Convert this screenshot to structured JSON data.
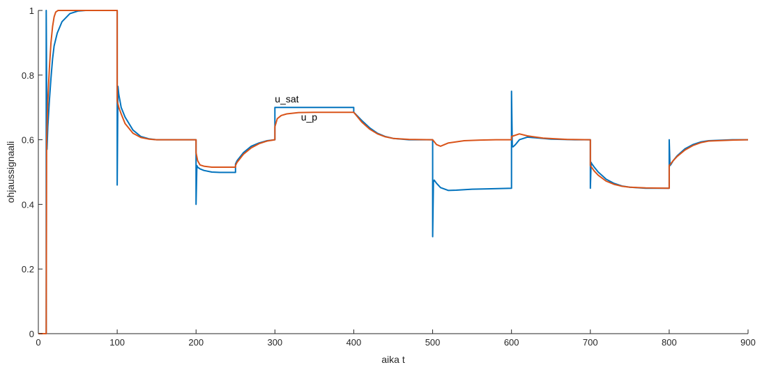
{
  "chart_data": {
    "type": "line",
    "xlabel": "aika t",
    "ylabel": "ohjaussignaali",
    "xlim": [
      0,
      900
    ],
    "ylim": [
      0,
      1
    ],
    "xticks": [
      "0",
      "100",
      "200",
      "300",
      "400",
      "500",
      "600",
      "700",
      "800",
      "900"
    ],
    "yticks": [
      "0",
      "0.2",
      "0.4",
      "0.6",
      "0.8",
      "1"
    ],
    "grid": false,
    "legend": "none",
    "annotations": [
      {
        "text": "u_sat",
        "x": 300,
        "y": 0.715
      },
      {
        "text": "u_p",
        "x": 333,
        "y": 0.66
      }
    ],
    "series": [
      {
        "name": "u_sat",
        "color": "#0072BD",
        "x": [
          0,
          10,
          10,
          11,
          12,
          14,
          16,
          18,
          20,
          24,
          30,
          40,
          50,
          60,
          80,
          100,
          100,
          101,
          102,
          105,
          110,
          120,
          130,
          140,
          150,
          170,
          200,
          200,
          201,
          202,
          205,
          210,
          220,
          230,
          240,
          250,
          250,
          252,
          260,
          270,
          280,
          290,
          300,
          300,
          400,
          400,
          402,
          410,
          420,
          430,
          440,
          450,
          470,
          500,
          500,
          501,
          502,
          505,
          510,
          520,
          530,
          550,
          570,
          600,
          600,
          601,
          602,
          605,
          610,
          620,
          630,
          650,
          680,
          700,
          700,
          701,
          702,
          705,
          710,
          720,
          730,
          740,
          750,
          770,
          800,
          800,
          801,
          802,
          805,
          810,
          820,
          830,
          840,
          850,
          880,
          900
        ],
        "y": [
          0,
          0,
          1,
          0.57,
          0.64,
          0.72,
          0.79,
          0.85,
          0.89,
          0.93,
          0.965,
          0.99,
          0.998,
          1,
          1,
          1,
          0.46,
          0.765,
          0.74,
          0.7,
          0.67,
          0.63,
          0.61,
          0.603,
          0.6,
          0.6,
          0.6,
          0.4,
          0.52,
          0.515,
          0.51,
          0.505,
          0.5,
          0.499,
          0.499,
          0.499,
          0.525,
          0.535,
          0.56,
          0.58,
          0.59,
          0.597,
          0.6,
          0.7,
          0.7,
          0.685,
          0.68,
          0.66,
          0.637,
          0.62,
          0.61,
          0.604,
          0.6,
          0.6,
          0.3,
          0.47,
          0.475,
          0.465,
          0.452,
          0.443,
          0.444,
          0.447,
          0.448,
          0.45,
          0.75,
          0.58,
          0.578,
          0.585,
          0.6,
          0.608,
          0.606,
          0.602,
          0.6,
          0.6,
          0.45,
          0.53,
          0.525,
          0.515,
          0.5,
          0.478,
          0.465,
          0.457,
          0.453,
          0.45,
          0.45,
          0.6,
          0.52,
          0.523,
          0.535,
          0.55,
          0.572,
          0.585,
          0.593,
          0.597,
          0.6,
          0.6
        ]
      },
      {
        "name": "u_p",
        "color": "#D95319",
        "x": [
          0,
          10,
          10.5,
          12,
          14,
          16,
          18,
          20,
          22,
          25,
          30,
          50,
          100,
          100,
          102,
          105,
          110,
          120,
          130,
          140,
          150,
          170,
          200,
          200,
          202,
          205,
          210,
          220,
          250,
          250,
          252,
          260,
          270,
          280,
          290,
          300,
          300,
          303,
          308,
          315,
          330,
          350,
          400,
          400,
          405,
          410,
          420,
          430,
          440,
          450,
          470,
          500,
          500,
          505,
          510,
          520,
          540,
          560,
          580,
          600,
          600,
          610,
          620,
          640,
          670,
          700,
          700,
          705,
          710,
          720,
          730,
          740,
          750,
          770,
          800,
          800,
          805,
          810,
          820,
          830,
          840,
          850,
          880,
          900
        ],
        "y": [
          0,
          0,
          0.6,
          0.72,
          0.82,
          0.9,
          0.95,
          0.98,
          0.995,
          1,
          1,
          1,
          1,
          0.72,
          0.7,
          0.68,
          0.65,
          0.62,
          0.607,
          0.602,
          0.6,
          0.6,
          0.6,
          0.56,
          0.535,
          0.522,
          0.518,
          0.515,
          0.515,
          0.52,
          0.53,
          0.555,
          0.575,
          0.588,
          0.596,
          0.6,
          0.64,
          0.665,
          0.675,
          0.68,
          0.684,
          0.685,
          0.685,
          0.685,
          0.67,
          0.655,
          0.633,
          0.618,
          0.609,
          0.604,
          0.601,
          0.6,
          0.6,
          0.585,
          0.58,
          0.59,
          0.597,
          0.599,
          0.6,
          0.6,
          0.61,
          0.618,
          0.612,
          0.605,
          0.601,
          0.6,
          0.52,
          0.503,
          0.49,
          0.472,
          0.462,
          0.456,
          0.453,
          0.451,
          0.45,
          0.52,
          0.535,
          0.548,
          0.568,
          0.582,
          0.591,
          0.596,
          0.599,
          0.6
        ]
      }
    ]
  }
}
